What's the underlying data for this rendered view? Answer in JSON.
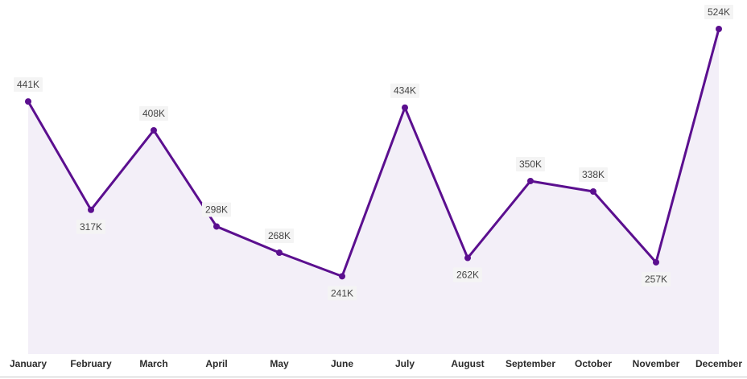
{
  "chart_data": {
    "type": "area",
    "categories": [
      "January",
      "February",
      "March",
      "April",
      "May",
      "June",
      "July",
      "August",
      "September",
      "October",
      "November",
      "December"
    ],
    "values": [
      441000,
      317000,
      408000,
      298000,
      268000,
      241000,
      434000,
      262000,
      350000,
      338000,
      257000,
      524000
    ],
    "data_labels": [
      "441K",
      "317K",
      "408K",
      "298K",
      "268K",
      "241K",
      "434K",
      "262K",
      "350K",
      "338K",
      "257K",
      "524K"
    ],
    "label_positions": [
      "above",
      "below",
      "above",
      "above",
      "above",
      "below",
      "above",
      "below",
      "above",
      "above",
      "below",
      "above"
    ],
    "ylim": [
      152000,
      524000
    ],
    "grid": false,
    "colors": {
      "line": "#5b0f8f",
      "fill": "#f3eff8",
      "label_bg": "#f4f4f4",
      "baseline": "#c8c8c8"
    }
  }
}
